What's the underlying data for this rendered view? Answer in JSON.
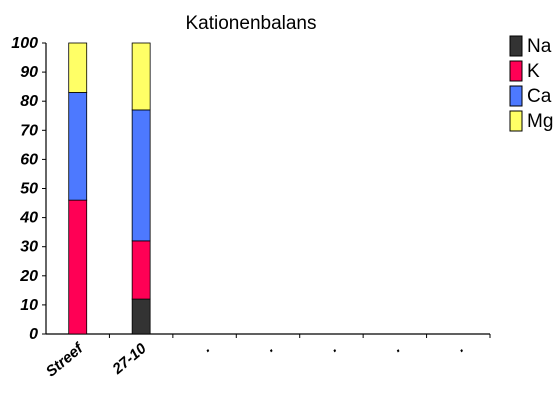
{
  "chart_data": {
    "type": "bar",
    "stacked": true,
    "title": "Kationenbalans",
    "xlabel": "",
    "ylabel": "",
    "ylim": [
      0,
      100
    ],
    "yticks": [
      0,
      10,
      20,
      30,
      40,
      50,
      60,
      70,
      80,
      90,
      100
    ],
    "categories": [
      "Streef",
      "27-10",
      ".",
      ".",
      ".",
      ".",
      "."
    ],
    "series": [
      {
        "name": "Na",
        "color": "#333333",
        "values": [
          0,
          12,
          null,
          null,
          null,
          null,
          null
        ]
      },
      {
        "name": "K",
        "color": "#ff0055",
        "values": [
          46,
          20,
          null,
          null,
          null,
          null,
          null
        ]
      },
      {
        "name": "Ca",
        "color": "#4d79ff",
        "values": [
          37,
          45,
          null,
          null,
          null,
          null,
          null
        ]
      },
      {
        "name": "Mg",
        "color": "#ffff66",
        "values": [
          17,
          23,
          null,
          null,
          null,
          null,
          null
        ]
      }
    ],
    "legend_position": "right",
    "grid": false
  }
}
